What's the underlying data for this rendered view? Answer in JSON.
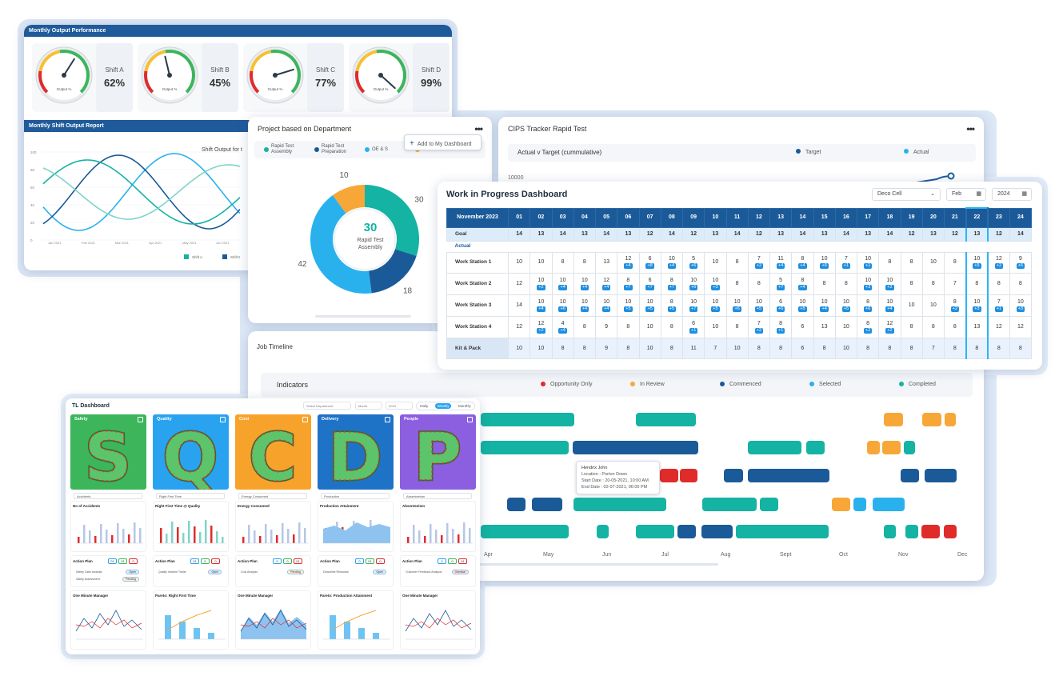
{
  "colors": {
    "teal": "#14b3a3",
    "navy": "#1b5a98",
    "sky": "#29b1ee",
    "orange": "#f7a738",
    "red": "#e02b2b"
  },
  "monthly": {
    "title": "Monthly Output Performance",
    "gauge_label": "Output %",
    "gauges": [
      {
        "name": "Shift A",
        "value": "62%",
        "level": 0.62
      },
      {
        "name": "Shift B",
        "value": "45%",
        "level": 0.45
      },
      {
        "name": "Shift C",
        "value": "77%",
        "level": 0.77
      },
      {
        "name": "Shift D",
        "value": "99%",
        "level": 0.99
      }
    ],
    "report_title": "Monthly Shift Output Report",
    "chart_title": "Shift Output for t",
    "y_ticks": [
      "100",
      "80",
      "60",
      "40",
      "20",
      "0"
    ],
    "x_ticks": [
      "Jan 2021",
      "Feb 2021",
      "Mar 2021",
      "Apr 2021",
      "May 2021",
      "Jun 2021",
      "Jul 2021"
    ],
    "legend": [
      "Shift A",
      "Shift B"
    ]
  },
  "project": {
    "title": "Project based on Department",
    "menu": "•••",
    "add_label": "Add to My Dashboard",
    "legend": [
      {
        "label": "Rapid Test Assembly",
        "color": "#14b3a3"
      },
      {
        "label": "Rapid Test Preparation",
        "color": "#1b5a98"
      },
      {
        "label": "OE & S",
        "color": "#29b1ee"
      },
      {
        "label": "Services",
        "color": "#f7a738"
      }
    ],
    "center_value": "30",
    "center_label": "Rapid Test Assembly",
    "slices": [
      {
        "label": "30",
        "value": 30,
        "color": "#14b3a3"
      },
      {
        "label": "18",
        "value": 18,
        "color": "#1b5a98"
      },
      {
        "label": "42",
        "value": 42,
        "color": "#29b1ee"
      },
      {
        "label": "10",
        "value": 10,
        "color": "#f7a738"
      }
    ]
  },
  "cips": {
    "title": "CIPS Tracker Rapid Test",
    "menu": "•••",
    "subtitle": "Actual v Target (cummulative)",
    "legend_target": "Target",
    "legend_actual": "Actual",
    "y_tick": "10000"
  },
  "job": {
    "title": "Job Timeline",
    "indicators_label": "Indicators",
    "indicators": [
      {
        "label": "Opportunity Only",
        "color": "#e02b2b"
      },
      {
        "label": "In Review",
        "color": "#f7a738"
      },
      {
        "label": "Commenced",
        "color": "#1b5a98"
      },
      {
        "label": "Selected",
        "color": "#29b1ee"
      },
      {
        "label": "Completed",
        "color": "#14b3a3"
      }
    ],
    "months": [
      "Apr",
      "May",
      "Jun",
      "Jul",
      "Aug",
      "Sept",
      "Oct",
      "Nov",
      "Dec"
    ],
    "tooltip": {
      "name": "Hendrix John",
      "location": "Location : Porton Down",
      "start": "Start Date : 20-05-2021, 10:00 AM",
      "end": "End Date : 02-07-2021, 06:00 PM"
    }
  },
  "wip": {
    "title": "Work in Progress Dashboard",
    "cell_select": "Deco Cell",
    "month_select": "Feb",
    "year_select": "2024",
    "period": "November 2023",
    "days": [
      "01",
      "02",
      "03",
      "04",
      "05",
      "06",
      "07",
      "08",
      "09",
      "10",
      "11",
      "12",
      "13",
      "14",
      "15",
      "16",
      "17",
      "18",
      "19",
      "20",
      "21",
      "22",
      "23",
      "24"
    ],
    "goal_label": "Goal",
    "goal": [
      "14",
      "13",
      "14",
      "13",
      "14",
      "13",
      "12",
      "14",
      "12",
      "13",
      "14",
      "12",
      "13",
      "14",
      "13",
      "14",
      "13",
      "14",
      "12",
      "13",
      "12",
      "13",
      "12",
      "14"
    ],
    "actual_label": "Actual",
    "rows": [
      {
        "label": "Work Station 1",
        "vals": [
          "10",
          "10",
          "8",
          "8",
          "13",
          "12",
          "6",
          "10",
          "5",
          "10",
          "8",
          "7",
          "11",
          "8",
          "10",
          "7",
          "10",
          "8",
          "8",
          "10",
          "8",
          "10",
          "12",
          "9"
        ],
        "badges": [
          "",
          "",
          "",
          "",
          "",
          "+4",
          "+8",
          "+4",
          "+6",
          "",
          "",
          "+2",
          "+4",
          "+4",
          "+6",
          "+1",
          "+1",
          "",
          "",
          "",
          "",
          "+5",
          "+2",
          "+6"
        ]
      },
      {
        "label": "Work Station 2",
        "vals": [
          "12",
          "10",
          "10",
          "10",
          "12",
          "8",
          "6",
          "8",
          "10",
          "10",
          "8",
          "8",
          "5",
          "8",
          "8",
          "8",
          "10",
          "10",
          "8",
          "8",
          "7",
          "8",
          "8",
          "8"
        ],
        "badges": [
          "",
          "+2",
          "+4",
          "+4",
          "+4",
          "+7",
          "+7",
          "+7",
          "+6",
          "+3",
          "",
          "",
          "+7",
          "+4",
          "",
          "",
          "+3",
          "+2",
          "",
          "",
          "",
          "",
          "",
          ""
        ]
      },
      {
        "label": "Work Station 3",
        "vals": [
          "14",
          "10",
          "10",
          "10",
          "10",
          "10",
          "10",
          "8",
          "10",
          "10",
          "10",
          "10",
          "6",
          "10",
          "10",
          "10",
          "8",
          "10",
          "10",
          "10",
          "8",
          "10",
          "7",
          "10"
        ],
        "badges": [
          "",
          "+4",
          "+6",
          "+4",
          "+4",
          "+5",
          "+5",
          "+5",
          "+7",
          "+5",
          "+6",
          "+5",
          "+6",
          "+5",
          "+4",
          "+5",
          "+6",
          "+4",
          "",
          "",
          "+2",
          "+3",
          "+1",
          "+3"
        ]
      },
      {
        "label": "Work Station 4",
        "vals": [
          "12",
          "12",
          "4",
          "8",
          "9",
          "8",
          "10",
          "8",
          "6",
          "10",
          "8",
          "7",
          "8",
          "6",
          "13",
          "10",
          "8",
          "12",
          "8",
          "8",
          "8",
          "13",
          "12",
          "12"
        ],
        "badges": [
          "",
          "+2",
          "+4",
          "",
          "",
          "",
          "",
          "",
          "+1",
          "",
          "",
          "+2",
          "+1",
          "",
          "",
          "",
          "+2",
          "+2",
          "",
          "",
          "",
          "",
          "",
          ""
        ]
      }
    ],
    "kit_label": "Kit & Pack",
    "kit": [
      "10",
      "10",
      "8",
      "8",
      "9",
      "8",
      "10",
      "8",
      "11",
      "7",
      "10",
      "8",
      "8",
      "6",
      "8",
      "10",
      "8",
      "8",
      "8",
      "7",
      "8",
      "8",
      "8",
      "8"
    ]
  },
  "tl": {
    "title": "TL Dashboard",
    "dept_placeholder": "Select Department",
    "month_placeholder": "Month",
    "year": "2024",
    "tabs": [
      "Daily",
      "Weekly",
      "Monthly"
    ],
    "columns": [
      {
        "name": "Safety",
        "letter": "S",
        "color": "#3cb55b",
        "select": "Accidents",
        "chart1": "No of Accidents",
        "plan": "Action Plan",
        "plan_counts": [
          "01",
          "01",
          "0"
        ],
        "plan_items": [
          "Safety Cake Analysis",
          "Safety Assessment"
        ],
        "plan_status": [
          "Open",
          "Pending"
        ],
        "chart2": "One Minute Manager"
      },
      {
        "name": "Quality",
        "letter": "Q",
        "color": "#29a3f0",
        "select": "Right First Time",
        "chart1": "Right First Time @ Quality",
        "plan": "Action Plan",
        "plan_counts": [
          "01",
          "0",
          "0"
        ],
        "plan_items": [
          "Quality Incident Trailer"
        ],
        "plan_status": [
          "Open"
        ],
        "chart2": "Pareto: Right First Time"
      },
      {
        "name": "Cost",
        "letter": "C",
        "color": "#f7a32b",
        "select": "Energy Consumed",
        "chart1": "Energy Consumed",
        "plan": "Action Plan",
        "plan_counts": [
          "0",
          "0",
          "01"
        ],
        "plan_items": [
          "Cost Analysis"
        ],
        "plan_status": [
          "Pending"
        ],
        "chart2": "One Minute Manager"
      },
      {
        "name": "Delivery",
        "letter": "D",
        "color": "#1f73c6",
        "select": "Production",
        "chart1": "Production Attainment",
        "plan": "Action Plan",
        "plan_counts": [
          "0",
          "01",
          "0"
        ],
        "plan_items": [
          "Downtime Reduction"
        ],
        "plan_status": [
          "Open"
        ],
        "chart2": "Pareto: Production Attainment"
      },
      {
        "name": "People",
        "letter": "P",
        "color": "#8b5fe0",
        "select": "Absenteeism",
        "chart1": "Absenteeism",
        "plan": "Action Plan",
        "plan_counts": [
          "0",
          "0",
          "01"
        ],
        "plan_items": [
          "Customer Feedback Analysis"
        ],
        "plan_status": [
          "Overdue"
        ],
        "chart2": "One Minute Manager"
      }
    ]
  }
}
